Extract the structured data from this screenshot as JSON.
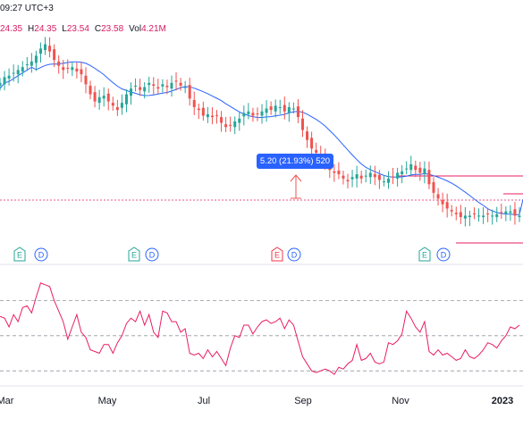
{
  "header": {
    "time_text": "09:27 UTC+3",
    "ohlc": {
      "open_value": "24.35",
      "high_label": "H",
      "high_value": "24.35",
      "low_label": "L",
      "low_value": "23.54",
      "close_label": "C",
      "close_value": "23.58",
      "vol_label": "Vol",
      "vol_value": "4.21M"
    }
  },
  "measure_callout": "5.20 (21.93%) 520",
  "event_markers": [
    {
      "type": "E",
      "color": "#26a69a"
    },
    {
      "type": "D",
      "color": "#2962ff"
    },
    {
      "type": "E",
      "color": "#26a69a"
    },
    {
      "type": "D",
      "color": "#2962ff"
    },
    {
      "type": "E",
      "color": "#f23645"
    },
    {
      "type": "D",
      "color": "#2962ff"
    },
    {
      "type": "E",
      "color": "#26a69a"
    },
    {
      "type": "D",
      "color": "#2962ff"
    }
  ],
  "colors": {
    "up": "#26a69a",
    "down": "#ef5350",
    "ma": "#2962ff",
    "rsi": "#e91e63",
    "hline": "#e91e63"
  },
  "chart_data": [
    {
      "type": "candlestick",
      "x_ticks": [
        "Mar",
        "May",
        "Jul",
        "Sep",
        "Nov",
        "2023"
      ],
      "price_range": [
        17.5,
        32.2
      ],
      "series": [
        {
          "name": "price",
          "close": [
            28.9,
            29.3,
            29.4,
            29.6,
            29.8,
            30.0,
            30.2,
            30.4,
            30.8,
            31.3,
            31.6,
            31.1,
            30.5,
            30.1,
            29.8,
            29.9,
            30.0,
            29.7,
            29.5,
            28.8,
            28.1,
            27.6,
            27.9,
            28.0,
            27.6,
            27.3,
            27.0,
            27.5,
            28.1,
            28.5,
            28.7,
            28.4,
            28.6,
            28.9,
            28.7,
            28.5,
            28.8,
            28.6,
            28.9,
            29.0,
            28.7,
            28.6,
            27.8,
            27.2,
            27.0,
            26.6,
            26.7,
            26.5,
            26.6,
            26.1,
            25.8,
            25.9,
            26.2,
            26.4,
            26.8,
            26.9,
            26.6,
            26.7,
            26.9,
            27.1,
            27.0,
            27.3,
            27.2,
            26.9,
            27.2,
            27.1,
            26.5,
            25.6,
            24.9,
            24.3,
            24.0,
            23.8,
            23.3,
            22.8,
            22.6,
            22.5,
            22.2,
            22.0,
            22.3,
            22.5,
            22.2,
            22.4,
            22.6,
            22.3,
            22.1,
            22.0,
            22.2,
            22.3,
            22.6,
            22.7,
            22.9,
            23.2,
            22.8,
            22.6,
            22.9,
            21.8,
            21.2,
            20.8,
            20.4,
            20.1,
            19.9,
            19.7,
            19.5,
            19.6,
            19.6,
            19.7,
            19.6,
            19.6,
            19.7,
            19.6,
            19.7,
            19.8,
            19.9,
            19.9,
            19.6,
            19.6
          ],
          "ma_last": 20.75
        },
        {
          "name": "rsi",
          "values": [
            61,
            60,
            55,
            62,
            58,
            66,
            67,
            63,
            72,
            80,
            79,
            78,
            70,
            64,
            58,
            48,
            55,
            62,
            52,
            49,
            42,
            41,
            40,
            45,
            45,
            40,
            46,
            50,
            57,
            60,
            58,
            64,
            56,
            62,
            52,
            49,
            64,
            63,
            58,
            58,
            52,
            54,
            40,
            39,
            40,
            37,
            42,
            38,
            41,
            37,
            33,
            43,
            50,
            49,
            56,
            56,
            51,
            55,
            58,
            59,
            57,
            58,
            60,
            54,
            59,
            56,
            47,
            38,
            34,
            30,
            29,
            30,
            31,
            30,
            28,
            32,
            31,
            34,
            36,
            45,
            36,
            37,
            40,
            35,
            34,
            35,
            46,
            45,
            47,
            51,
            64,
            60,
            55,
            52,
            58,
            41,
            39,
            42,
            39,
            40,
            38,
            36,
            37,
            42,
            38,
            37,
            39,
            42,
            46,
            45,
            43,
            47,
            50,
            55,
            54,
            56
          ]
        }
      ]
    }
  ]
}
